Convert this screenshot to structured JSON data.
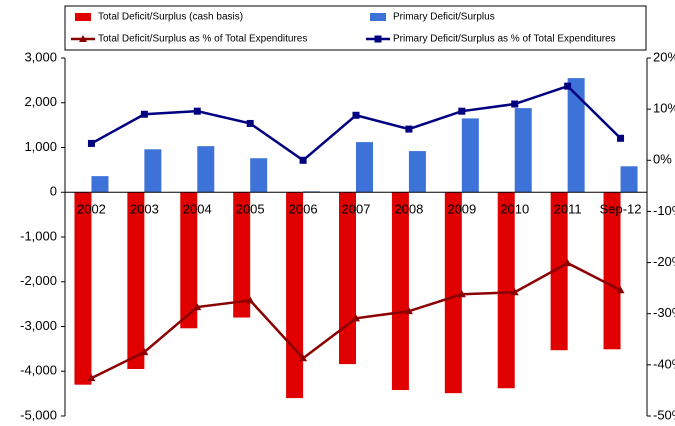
{
  "chart_data": {
    "type": "bar",
    "categories": [
      "2002",
      "2003",
      "2004",
      "2005",
      "2006",
      "2007",
      "2008",
      "2009",
      "2010",
      "2011",
      "Sep-12"
    ],
    "series": [
      {
        "name": "Total Deficit/Surplus (cash basis)",
        "type": "bar",
        "color": "#e00000",
        "values": [
          -4300,
          -3950,
          -3040,
          -2800,
          -4600,
          -3840,
          -4420,
          -4490,
          -4380,
          -3530,
          -3510
        ]
      },
      {
        "name": "Primary Deficit/Surplus",
        "type": "bar",
        "color": "#3d72d8",
        "values": [
          360,
          960,
          1030,
          760,
          20,
          1120,
          920,
          1650,
          1880,
          2550,
          580
        ]
      },
      {
        "name": "Total Deficit/Surplus as % of Total Expenditures",
        "type": "line",
        "axis": "y2",
        "color": "#8b0000",
        "values": [
          -42.6,
          -37.5,
          -28.7,
          -27.4,
          -38.7,
          -30.9,
          -29.5,
          -26.2,
          -25.8,
          -20.1,
          -25.4
        ]
      },
      {
        "name": "Primary Deficit/Surplus as % of Total Expenditures",
        "type": "line",
        "axis": "y2",
        "color": "#000080",
        "values": [
          3.3,
          9.0,
          9.6,
          7.2,
          0,
          8.8,
          6.1,
          9.6,
          11.0,
          14.5,
          4.3
        ]
      }
    ],
    "ylim": [
      -5000,
      3000
    ],
    "yticks": [
      {
        "value": -5000,
        "label": "-5,000"
      },
      {
        "value": -4000,
        "label": "-4,000"
      },
      {
        "value": -3000,
        "label": "-3,000"
      },
      {
        "value": -2000,
        "label": "-2,000"
      },
      {
        "value": -1000,
        "label": "-1,000"
      },
      0,
      {
        "value": 1000,
        "label": "1,000"
      },
      {
        "value": 2000,
        "label": "2,000"
      },
      {
        "value": 3000,
        "label": "3,000"
      }
    ],
    "y2lim": [
      -50,
      20
    ],
    "y2ticks": [
      {
        "value": -50,
        "label": "-50%"
      },
      {
        "value": -40,
        "label": "-40%"
      },
      {
        "value": -30,
        "label": "-30%"
      },
      {
        "value": -20,
        "label": "-20%"
      },
      {
        "value": -10,
        "label": "-10%"
      },
      {
        "value": 0,
        "label": "0%"
      },
      {
        "value": 10,
        "label": "10%"
      },
      {
        "value": 20,
        "label": "20%"
      }
    ],
    "grid": false,
    "legend": "top"
  }
}
